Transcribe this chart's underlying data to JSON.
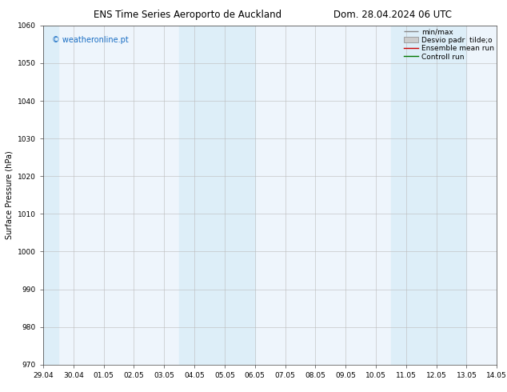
{
  "title_left": "ENS Time Series Aeroporto de Auckland",
  "title_right": "Dom. 28.04.2024 06 UTC",
  "ylabel": "Surface Pressure (hPa)",
  "ylim": [
    970,
    1060
  ],
  "yticks": [
    970,
    980,
    990,
    1000,
    1010,
    1020,
    1030,
    1040,
    1050,
    1060
  ],
  "xtick_labels": [
    "29.04",
    "30.04",
    "01.05",
    "02.05",
    "03.05",
    "04.05",
    "05.05",
    "06.05",
    "07.05",
    "08.05",
    "09.05",
    "10.05",
    "11.05",
    "12.05",
    "13.05",
    "14.05"
  ],
  "watermark": "© weatheronline.pt",
  "legend_entries": [
    "min/max",
    "Desvio padr  tilde;o",
    "Ensemble mean run",
    "Controll run"
  ],
  "shaded_color": "#ddeef8",
  "bg_color": "#ffffff",
  "plot_bg_color": "#eef5fc",
  "title_fontsize": 8.5,
  "axis_fontsize": 7,
  "tick_fontsize": 6.5,
  "watermark_color": "#1a6ec4",
  "watermark_fontsize": 7,
  "legend_fontsize": 6.5
}
